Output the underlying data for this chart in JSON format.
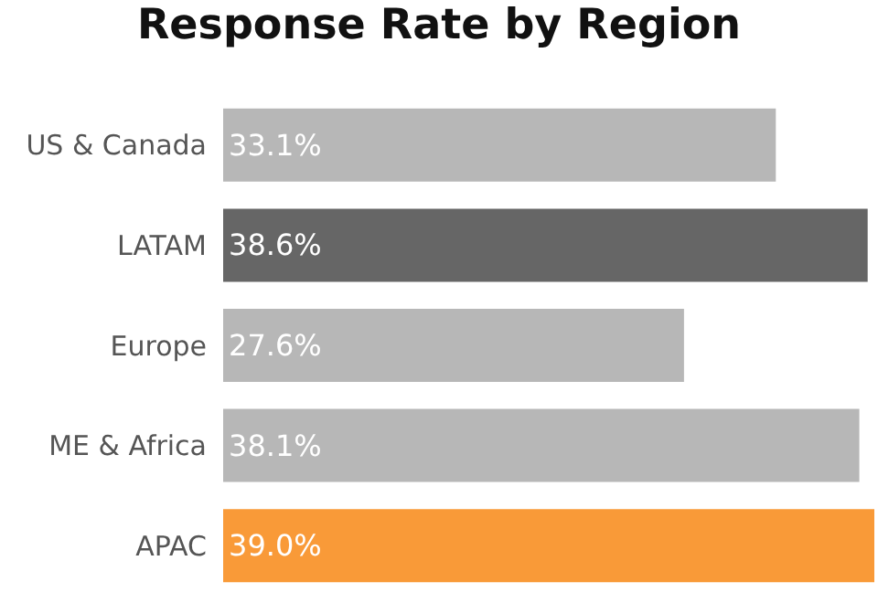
{
  "chart_data": {
    "type": "bar",
    "orientation": "horizontal",
    "title": "Response Rate by Region",
    "categories": [
      "US & Canada",
      "LATAM",
      "Europe",
      "ME & Africa",
      "APAC"
    ],
    "values": [
      33.1,
      38.6,
      27.6,
      38.1,
      39.0
    ],
    "colors": [
      "#b7b7b7",
      "#666666",
      "#b7b7b7",
      "#b7b7b7",
      "#f99a38"
    ],
    "value_labels": [
      "33.1%",
      "38.6%",
      "27.6%",
      "38.1%",
      "39.0%"
    ],
    "grid": false,
    "legend": false
  }
}
